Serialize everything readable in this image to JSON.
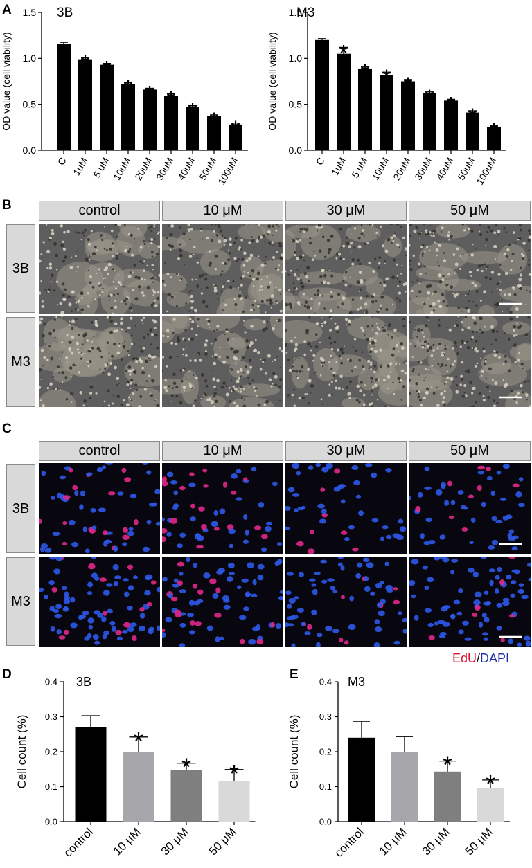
{
  "panel_letters": {
    "A": "A",
    "B": "B",
    "C": "C",
    "D": "D",
    "E": "E"
  },
  "chart_data": [
    {
      "id": "A-3B",
      "type": "bar",
      "title": "3B",
      "ylabel": "OD value (cell viability)",
      "xlabel": "",
      "categories": [
        "C",
        "1uM",
        "5 uM",
        "10uM",
        "20uM",
        "30uM",
        "40uM",
        "50uM",
        "100uM"
      ],
      "values": [
        1.16,
        0.99,
        0.93,
        0.72,
        0.66,
        0.59,
        0.47,
        0.37,
        0.28
      ],
      "errors": [
        0.015,
        0.015,
        0.015,
        0.015,
        0.015,
        0.025,
        0.015,
        0.015,
        0.015
      ],
      "significant": [
        false,
        true,
        true,
        true,
        true,
        true,
        true,
        true,
        true
      ],
      "sig_marker": "*",
      "ylim": [
        0,
        1.5
      ],
      "yticks": [
        "0.0",
        "0.5",
        "1.0",
        "1.5"
      ],
      "bar_color": "#000000"
    },
    {
      "id": "A-M3",
      "type": "bar",
      "title": "M3",
      "ylabel": "OD value (cell viability)",
      "xlabel": "",
      "categories": [
        "C",
        "1uM",
        "5 uM",
        "10uM",
        "20uM",
        "30uM",
        "40uM",
        "50uM",
        "100uM"
      ],
      "values": [
        1.2,
        1.05,
        0.89,
        0.82,
        0.75,
        0.62,
        0.54,
        0.41,
        0.25
      ],
      "errors": [
        0.015,
        0.07,
        0.02,
        0.03,
        0.02,
        0.015,
        0.015,
        0.02,
        0.02
      ],
      "significant": [
        false,
        true,
        true,
        true,
        true,
        true,
        true,
        true,
        true
      ],
      "sig_marker": "*",
      "ylim": [
        0,
        1.5
      ],
      "yticks": [
        "0.0",
        "0.5",
        "1.0",
        "1.5"
      ],
      "bar_color": "#000000"
    },
    {
      "id": "D",
      "type": "bar",
      "title": "3B",
      "ylabel": "Cell count (%)",
      "xlabel": "",
      "categories": [
        "control",
        "10 μM",
        "30 μM",
        "50 μM"
      ],
      "values": [
        0.27,
        0.2,
        0.147,
        0.117
      ],
      "errors": [
        0.033,
        0.042,
        0.02,
        0.032
      ],
      "significant": [
        false,
        true,
        true,
        true
      ],
      "sig_marker": "*",
      "ylim": [
        0,
        0.4
      ],
      "yticks": [
        "0.0",
        "0.1",
        "0.2",
        "0.3",
        "0.4"
      ],
      "colors": [
        "#000000",
        "#a6a6ab",
        "#7f7f7f",
        "#d9d9d9"
      ]
    },
    {
      "id": "E",
      "type": "bar",
      "title": "M3",
      "ylabel": "Cell count (%)",
      "xlabel": "",
      "categories": [
        "control",
        "10 μM",
        "30 μM",
        "50 μM"
      ],
      "values": [
        0.24,
        0.2,
        0.143,
        0.097
      ],
      "errors": [
        0.047,
        0.043,
        0.03,
        0.022
      ],
      "significant": [
        false,
        false,
        true,
        true
      ],
      "sig_marker": "*",
      "ylim": [
        0,
        0.4
      ],
      "yticks": [
        "0.0",
        "0.1",
        "0.2",
        "0.3",
        "0.4"
      ],
      "colors": [
        "#000000",
        "#a6a6ab",
        "#7f7f7f",
        "#d9d9d9"
      ]
    }
  ],
  "panel_b": {
    "columns": [
      "control",
      "10 μM",
      "30 μM",
      "50 μM"
    ],
    "rows": [
      "3B",
      "M3"
    ]
  },
  "panel_c": {
    "columns": [
      "control",
      "10 μM",
      "30 μM",
      "50 μM"
    ],
    "rows": [
      "3B",
      "M3"
    ],
    "legend": {
      "edu": "EdU",
      "sep": "/",
      "dapi": "DAPI",
      "edu_color": "#d9122f",
      "dapi_color": "#1a2ea8"
    }
  }
}
